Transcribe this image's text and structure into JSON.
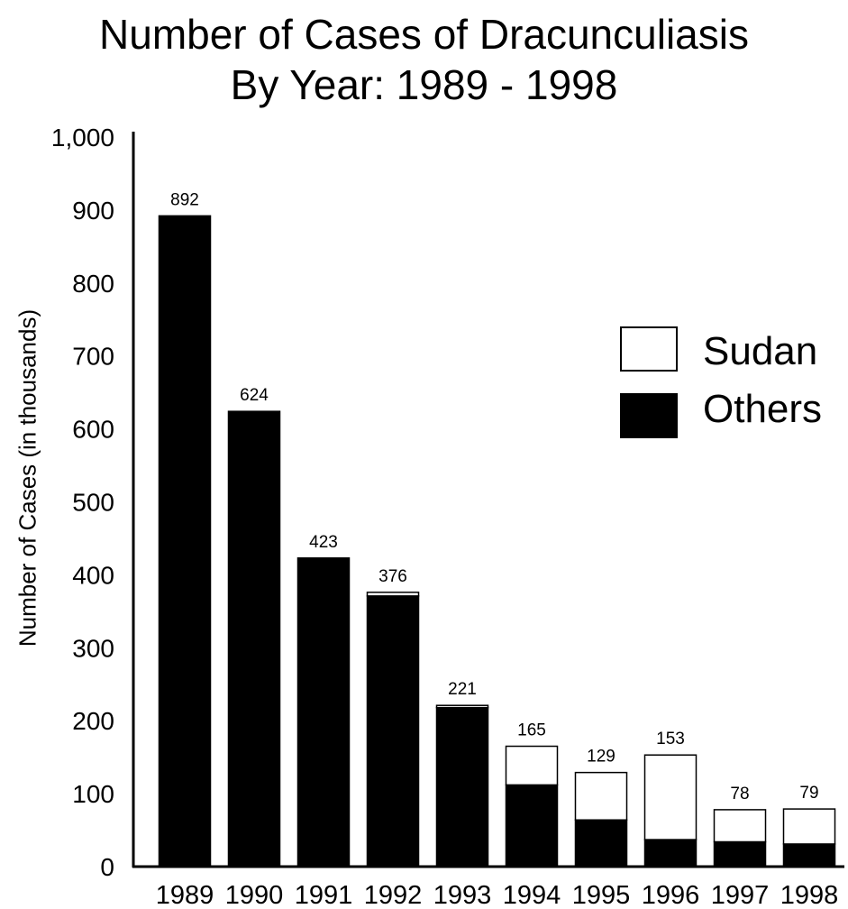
{
  "chart_data": {
    "type": "bar",
    "title_lines": [
      "Number of Cases of Dracunculiasis",
      "By Year: 1989 - 1998"
    ],
    "xlabel": "",
    "ylabel": "Number of Cases (in thousands)",
    "ylim": [
      0,
      1000
    ],
    "yticks": [
      "0",
      "100",
      "200",
      "300",
      "400",
      "500",
      "600",
      "700",
      "800",
      "900",
      "1,000"
    ],
    "categories": [
      "1989",
      "1990",
      "1991",
      "1992",
      "1993",
      "1994",
      "1995",
      "1996",
      "1997",
      "1998"
    ],
    "stacked": true,
    "series": [
      {
        "name": "Others",
        "color": "#000000",
        "values": [
          892,
          624,
          423,
          371,
          218,
          112,
          64,
          37,
          34,
          31
        ]
      },
      {
        "name": "Sudan",
        "color": "#ffffff",
        "values": [
          0,
          0,
          0,
          5,
          3,
          53,
          65,
          116,
          44,
          48
        ]
      }
    ],
    "totals": [
      892,
      624,
      423,
      376,
      221,
      165,
      129,
      153,
      78,
      79
    ],
    "total_labels": [
      "892",
      "624",
      "423",
      "376",
      "221",
      "165",
      "129",
      "153",
      "78",
      "79"
    ],
    "legend_position": "right",
    "grid": false
  }
}
